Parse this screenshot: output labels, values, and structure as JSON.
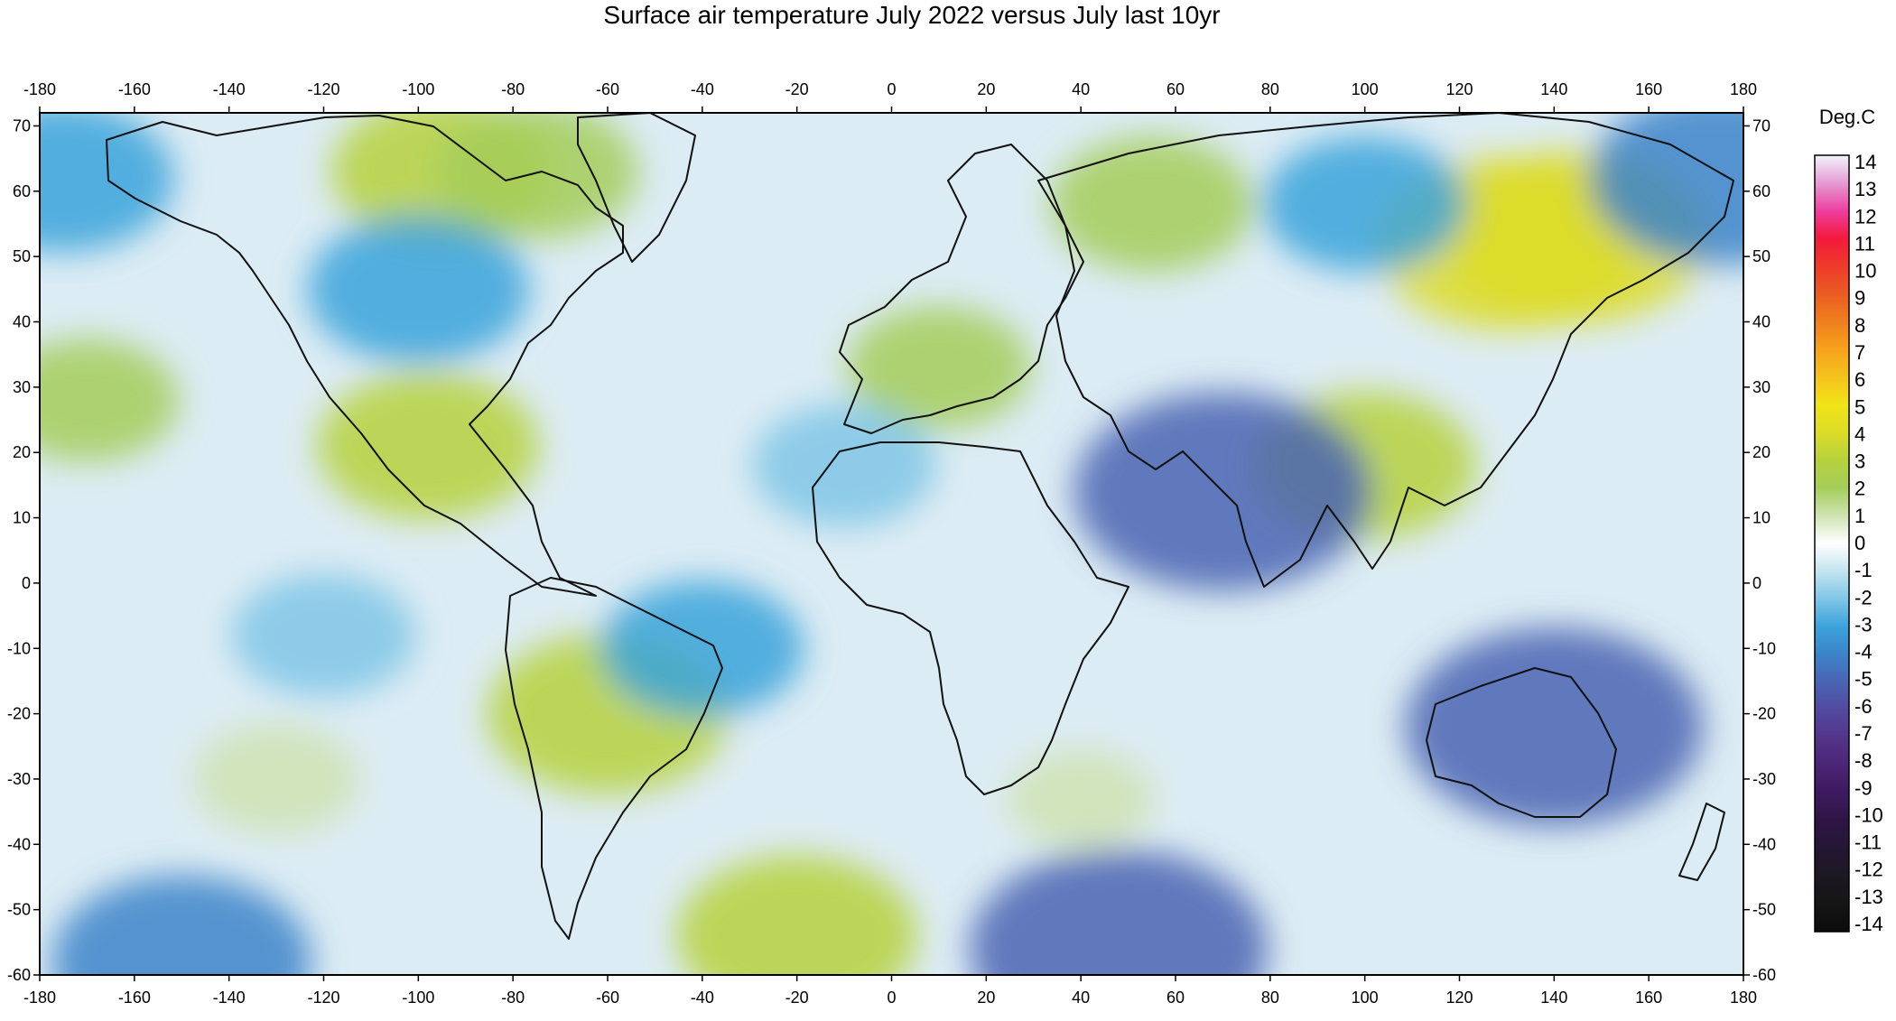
{
  "title": "Surface air temperature July 2022 versus July last 10yr",
  "colorbar": {
    "unit": "Deg.C",
    "labels": [
      "14",
      "13",
      "12",
      "11",
      "10",
      "9",
      "8",
      "7",
      "6",
      "5",
      "4",
      "3",
      "2",
      "1",
      "0",
      "-1",
      "-2",
      "-3",
      "-4",
      "-5",
      "-6",
      "-7",
      "-8",
      "-9",
      "-10",
      "-11",
      "-12",
      "-13",
      "-14"
    ],
    "colors": [
      "#f3f3fb",
      "#e49ad2",
      "#ee3fa0",
      "#f2193c",
      "#ef3b2a",
      "#ea5c22",
      "#ef7f1d",
      "#f6a21b",
      "#f4c21c",
      "#f1e417",
      "#dcdc28",
      "#b6d13c",
      "#a5cd5b",
      "#cfe3b2",
      "#ffffff",
      "#c3e4f0",
      "#7fc6e6",
      "#3ba3da",
      "#3c84c9",
      "#4a64b3",
      "#524a9f",
      "#53358a",
      "#4b2576",
      "#3d1a5e",
      "#2e1545",
      "#241634",
      "#1c1823",
      "#151515",
      "#0c0c0c"
    ]
  },
  "axes": {
    "x_ticks": [
      "-180",
      "-160",
      "-140",
      "-120",
      "-100",
      "-80",
      "-60",
      "-40",
      "-20",
      "0",
      "20",
      "40",
      "60",
      "80",
      "100",
      "120",
      "140",
      "160",
      "180"
    ],
    "y_ticks": [
      "70",
      "60",
      "50",
      "40",
      "30",
      "20",
      "10",
      "0",
      "-10",
      "-20",
      "-30",
      "-40",
      "-50",
      "-60"
    ],
    "x_range": [
      -180,
      180
    ],
    "y_range": [
      -60,
      72
    ]
  },
  "anomaly_regions": [
    {
      "lon": -95,
      "lat": 63,
      "value": 3
    },
    {
      "lon": -75,
      "lat": 63,
      "value": 2.5
    },
    {
      "lon": -98,
      "lat": 21,
      "value": 3
    },
    {
      "lon": -60,
      "lat": -20,
      "value": 3.5
    },
    {
      "lon": -170,
      "lat": 28,
      "value": 2
    },
    {
      "lon": -20,
      "lat": -54,
      "value": 3.5
    },
    {
      "lon": 130,
      "lat": 52,
      "value": 4
    },
    {
      "lon": 145,
      "lat": 53,
      "value": 4
    },
    {
      "lon": 100,
      "lat": 18,
      "value": 3
    },
    {
      "lon": 10,
      "lat": 33,
      "value": 2
    },
    {
      "lon": 55,
      "lat": 58,
      "value": 2.5
    },
    {
      "lon": -130,
      "lat": -30,
      "value": 1.5
    },
    {
      "lon": 40,
      "lat": -33,
      "value": 1
    },
    {
      "lon": 70,
      "lat": 14,
      "value": -5
    },
    {
      "lon": 140,
      "lat": -22,
      "value": -5
    },
    {
      "lon": 100,
      "lat": 58,
      "value": -2.5
    },
    {
      "lon": -100,
      "lat": 45,
      "value": -3
    },
    {
      "lon": -175,
      "lat": 62,
      "value": -3
    },
    {
      "lon": 175,
      "lat": 62,
      "value": -4
    },
    {
      "lon": 48,
      "lat": -56,
      "value": -5
    },
    {
      "lon": -150,
      "lat": -58,
      "value": -4
    },
    {
      "lon": -120,
      "lat": -8,
      "value": -2
    },
    {
      "lon": -40,
      "lat": -10,
      "value": -2.5
    },
    {
      "lon": -10,
      "lat": 18,
      "value": -2
    }
  ]
}
